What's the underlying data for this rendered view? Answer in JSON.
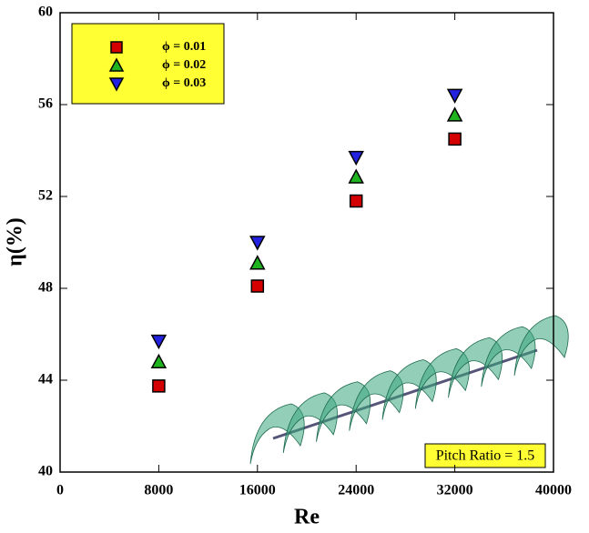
{
  "chart_data": {
    "type": "scatter",
    "x_label": "Re",
    "y_label": "η(%)",
    "x": [
      8000,
      16000,
      24000,
      32000
    ],
    "series": [
      {
        "name": "ϕ = 0.01",
        "color": "#d40000",
        "marker": "square",
        "values": [
          43.75,
          48.1,
          51.8,
          54.5
        ]
      },
      {
        "name": "ϕ = 0.02",
        "color": "#1fb31f",
        "marker": "triangle-up",
        "values": [
          44.8,
          49.1,
          52.85,
          55.55
        ]
      },
      {
        "name": "ϕ = 0.03",
        "color": "#2222e0",
        "marker": "triangle-down",
        "values": [
          45.7,
          50.0,
          53.7,
          56.4
        ]
      }
    ],
    "xlim": [
      0,
      40000
    ],
    "xticks": [
      0,
      8000,
      16000,
      24000,
      32000,
      40000
    ],
    "ylim": [
      40,
      60
    ],
    "yticks": [
      40,
      44,
      48,
      52,
      56,
      60
    ],
    "annotation": "Pitch Ratio = 1.5"
  }
}
